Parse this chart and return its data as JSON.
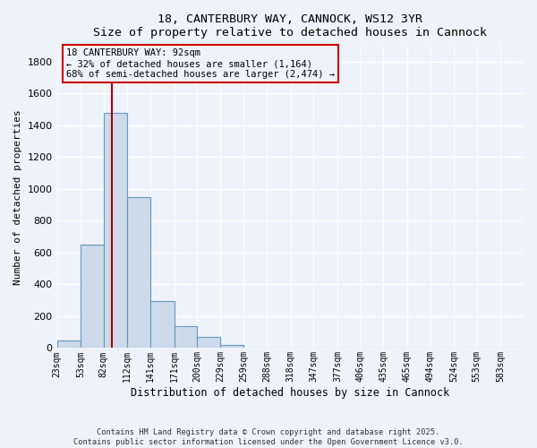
{
  "title_line1": "18, CANTERBURY WAY, CANNOCK, WS12 3YR",
  "title_line2": "Size of property relative to detached houses in Cannock",
  "xlabel": "Distribution of detached houses by size in Cannock",
  "ylabel": "Number of detached properties",
  "bar_color": "#ccdaea",
  "bar_edge_color": "#6699bb",
  "background_color": "#eef2fa",
  "grid_color": "#ffffff",
  "annotation_box_color": "#cc0000",
  "vline_color": "#aa0000",
  "bins": [
    23,
    53,
    82,
    112,
    141,
    171,
    200,
    229,
    259,
    288,
    318,
    347,
    377,
    406,
    435,
    465,
    494,
    524,
    553,
    583,
    612
  ],
  "counts": [
    45,
    650,
    1480,
    950,
    295,
    140,
    70,
    20,
    5,
    2,
    2,
    0,
    0,
    0,
    0,
    0,
    0,
    0,
    0,
    0
  ],
  "property_size": 92,
  "annotation_text": "18 CANTERBURY WAY: 92sqm\n← 32% of detached houses are smaller (1,164)\n68% of semi-detached houses are larger (2,474) →",
  "footnote1": "Contains HM Land Registry data © Crown copyright and database right 2025.",
  "footnote2": "Contains public sector information licensed under the Open Government Licence v3.0.",
  "ylim": [
    0,
    1900
  ],
  "yticks": [
    0,
    200,
    400,
    600,
    800,
    1000,
    1200,
    1400,
    1600,
    1800
  ]
}
